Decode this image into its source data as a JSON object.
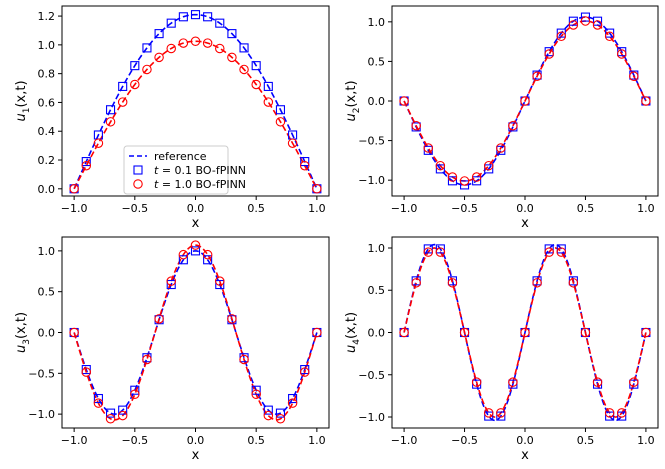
{
  "chart_data": [
    {
      "type": "line",
      "ylabel_main": "u",
      "ylabel_sub": "1",
      "ylabel_args": "(x,t)",
      "xlabel": "x",
      "xlim": [
        -1.1,
        1.1
      ],
      "ylim": [
        -0.05,
        1.27
      ],
      "xticks": [
        -1.0,
        -0.5,
        0.0,
        0.5,
        1.0
      ],
      "xtick_labels": [
        "−1.0",
        "−0.5",
        "0.0",
        "0.5",
        "1.0"
      ],
      "yticks": [
        0.0,
        0.2,
        0.4,
        0.6,
        0.8,
        1.0,
        1.2
      ],
      "ytick_labels": [
        "0.0",
        "0.2",
        "0.4",
        "0.6",
        "0.8",
        "1.0",
        "1.2"
      ],
      "series": [
        {
          "name": "t=0.1 reference",
          "role": "reference",
          "color": "#0000ff",
          "fn": "amp*cos(pi*x/2)",
          "amp": 1.21
        },
        {
          "name": "t=1.0 reference",
          "role": "reference",
          "color": "#ff0000",
          "fn": "amp*cos(pi*x/2)",
          "amp": 1.025
        },
        {
          "name": "t=0.1 BO-fPINN",
          "role": "prediction",
          "marker": "square",
          "color": "#0000ff",
          "fn": "amp*cos(pi*x/2)",
          "amp": 1.21
        },
        {
          "name": "t=1.0 BO-fPINN",
          "role": "prediction",
          "marker": "circle",
          "color": "#ff0000",
          "fn": "amp*cos(pi*x/2)",
          "amp": 1.025
        }
      ],
      "legend": {
        "position": "lower-center",
        "entries": [
          {
            "label": "reference",
            "style": "dashed",
            "color": "#0000ff"
          },
          {
            "prefix": "t",
            "label": " = 0.1 BO-fPINN",
            "style": "square",
            "color": "#0000ff"
          },
          {
            "prefix": "t",
            "label": " = 1.0 BO-fPINN",
            "style": "circle",
            "color": "#ff0000"
          }
        ]
      }
    },
    {
      "type": "line",
      "ylabel_main": "u",
      "ylabel_sub": "2",
      "ylabel_args": "(x,t)",
      "xlabel": "x",
      "xlim": [
        -1.1,
        1.1
      ],
      "ylim": [
        -1.2,
        1.2
      ],
      "xticks": [
        -1.0,
        -0.5,
        0.0,
        0.5,
        1.0
      ],
      "xtick_labels": [
        "−1.0",
        "−0.5",
        "0.0",
        "0.5",
        "1.0"
      ],
      "yticks": [
        -1.0,
        -0.5,
        0.0,
        0.5,
        1.0
      ],
      "ytick_labels": [
        "−1.0",
        "−0.5",
        "0.0",
        "0.5",
        "1.0"
      ],
      "series": [
        {
          "name": "t=0.1 reference",
          "role": "reference",
          "color": "#0000ff",
          "fn": "amp*sin(pi*x)",
          "amp": 1.06
        },
        {
          "name": "t=1.0 reference",
          "role": "reference",
          "color": "#ff0000",
          "fn": "amp*sin(pi*x)",
          "amp": 1.01
        },
        {
          "name": "t=0.1 BO-fPINN",
          "role": "prediction",
          "marker": "square",
          "color": "#0000ff",
          "fn": "amp*sin(pi*x)",
          "amp": 1.06
        },
        {
          "name": "t=1.0 BO-fPINN",
          "role": "prediction",
          "marker": "circle",
          "color": "#ff0000",
          "fn": "amp*sin(pi*x)",
          "amp": 1.01
        }
      ]
    },
    {
      "type": "line",
      "ylabel_main": "u",
      "ylabel_sub": "3",
      "ylabel_args": "(x,t)",
      "xlabel": "x",
      "xlim": [
        -1.1,
        1.1
      ],
      "ylim": [
        -1.17,
        1.17
      ],
      "xticks": [
        -1.0,
        -0.5,
        0.0,
        0.5,
        1.0
      ],
      "xtick_labels": [
        "−1.0",
        "−0.5",
        "0.0",
        "0.5",
        "1.0"
      ],
      "yticks": [
        -1.0,
        -0.5,
        0.0,
        0.5,
        1.0
      ],
      "ytick_labels": [
        "−1.0",
        "−0.5",
        "0.0",
        "0.5",
        "1.0"
      ],
      "series": [
        {
          "name": "t=0.1 reference",
          "role": "reference",
          "color": "#0000ff",
          "fn": "amp*cos(3*pi*x/2)",
          "amp": 1.0
        },
        {
          "name": "t=1.0 reference",
          "role": "reference",
          "color": "#ff0000",
          "fn": "amp*cos(3*pi*x/2)",
          "amp": 1.07
        },
        {
          "name": "t=0.1 BO-fPINN",
          "role": "prediction",
          "marker": "square",
          "color": "#0000ff",
          "fn": "amp*cos(3*pi*x/2)",
          "amp": 1.0
        },
        {
          "name": "t=1.0 BO-fPINN",
          "role": "prediction",
          "marker": "circle",
          "color": "#ff0000",
          "fn": "amp*cos(3*pi*x/2)",
          "amp": 1.07
        }
      ]
    },
    {
      "type": "line",
      "ylabel_main": "u",
      "ylabel_sub": "4",
      "ylabel_args": "(x,t)",
      "xlabel": "x",
      "xlim": [
        -1.1,
        1.1
      ],
      "ylim": [
        -1.13,
        1.13
      ],
      "xticks": [
        -1.0,
        -0.5,
        0.0,
        0.5,
        1.0
      ],
      "xtick_labels": [
        "−1.0",
        "−0.5",
        "0.0",
        "0.5",
        "1.0"
      ],
      "yticks": [
        -1.0,
        -0.5,
        0.0,
        0.5,
        1.0
      ],
      "ytick_labels": [
        "−1.0",
        "−0.5",
        "0.0",
        "0.5",
        "1.0"
      ],
      "series": [
        {
          "name": "t=0.1 reference",
          "role": "reference",
          "color": "#0000ff",
          "fn": "amp*sin(2*pi*x)",
          "amp": 1.04
        },
        {
          "name": "t=1.0 reference",
          "role": "reference",
          "color": "#ff0000",
          "fn": "amp*sin(2*pi*x)",
          "amp": 1.0
        },
        {
          "name": "t=0.1 BO-fPINN",
          "role": "prediction",
          "marker": "square",
          "color": "#0000ff",
          "fn": "amp*sin(2*pi*x)",
          "amp": 1.04
        },
        {
          "name": "t=1.0 BO-fPINN",
          "role": "prediction",
          "marker": "circle",
          "color": "#ff0000",
          "fn": "amp*sin(2*pi*x)",
          "amp": 1.0
        }
      ]
    }
  ]
}
